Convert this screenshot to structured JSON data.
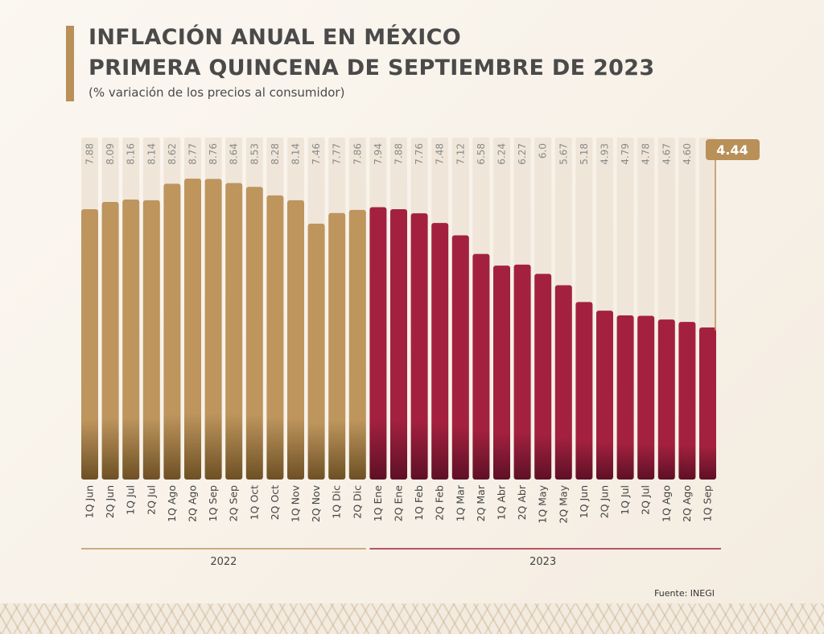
{
  "header": {
    "title_line1": "INFLACIÓN ANUAL EN MÉXICO",
    "title_line2": "PRIMERA QUINCENA DE SEPTIEMBRE DE 2023",
    "subtitle": "(% variación de los precios al consumidor)"
  },
  "footer": {
    "source": "Fuente: INEGI"
  },
  "colors": {
    "y2022": "#bd955d",
    "y2023": "#a3213f",
    "highlight_badge": "#b89058"
  },
  "chart_data": {
    "type": "bar",
    "title": "INFLACIÓN ANUAL EN MÉXICO PRIMERA QUINCENA DE SEPTIEMBRE DE 2023",
    "ylabel": "(% variación de los precios al consumidor)",
    "categories": [
      "1Q Jun",
      "2Q Jun",
      "1Q Jul",
      "2Q Jul",
      "1Q Ago",
      "2Q Ago",
      "1Q Sep",
      "2Q Sep",
      "1Q Oct",
      "2Q Oct",
      "1Q Nov",
      "2Q Nov",
      "1Q Dic",
      "2Q Dic",
      "1Q Ene",
      "2Q Ene",
      "1Q Feb",
      "2Q Feb",
      "1Q Mar",
      "2Q Mar",
      "1Q Abr",
      "2Q Abr",
      "1Q May",
      "2Q May",
      "1Q Jun",
      "2Q Jun",
      "1Q Jul",
      "2Q Jul",
      "1Q Ago",
      "2Q Ago",
      "1Q Sep"
    ],
    "value_labels": [
      "7.88",
      "8.09",
      "8.16",
      "8.14",
      "8.62",
      "8.77",
      "8.76",
      "8.64",
      "8.53",
      "8.28",
      "8.14",
      "7.46",
      "7.77",
      "7.86",
      "7.94",
      "7.88",
      "7.76",
      "7.48",
      "7.12",
      "6.58",
      "6.24",
      "6.27",
      "6.0",
      "5.67",
      "5.18",
      "4.93",
      "4.79",
      "4.78",
      "4.67",
      "4.60",
      "4.44"
    ],
    "values": [
      7.88,
      8.09,
      8.16,
      8.14,
      8.62,
      8.77,
      8.76,
      8.64,
      8.53,
      8.28,
      8.14,
      7.46,
      7.77,
      7.86,
      7.94,
      7.88,
      7.76,
      7.48,
      7.12,
      6.58,
      6.24,
      6.27,
      6.0,
      5.67,
      5.18,
      4.93,
      4.79,
      4.78,
      4.67,
      4.6,
      4.44
    ],
    "groups": [
      {
        "label": "2022",
        "start": 0,
        "count": 14
      },
      {
        "label": "2023",
        "start": 14,
        "count": 17
      }
    ],
    "highlight": {
      "index": 30,
      "label": "4.44"
    },
    "ylim": [
      0,
      10
    ]
  }
}
